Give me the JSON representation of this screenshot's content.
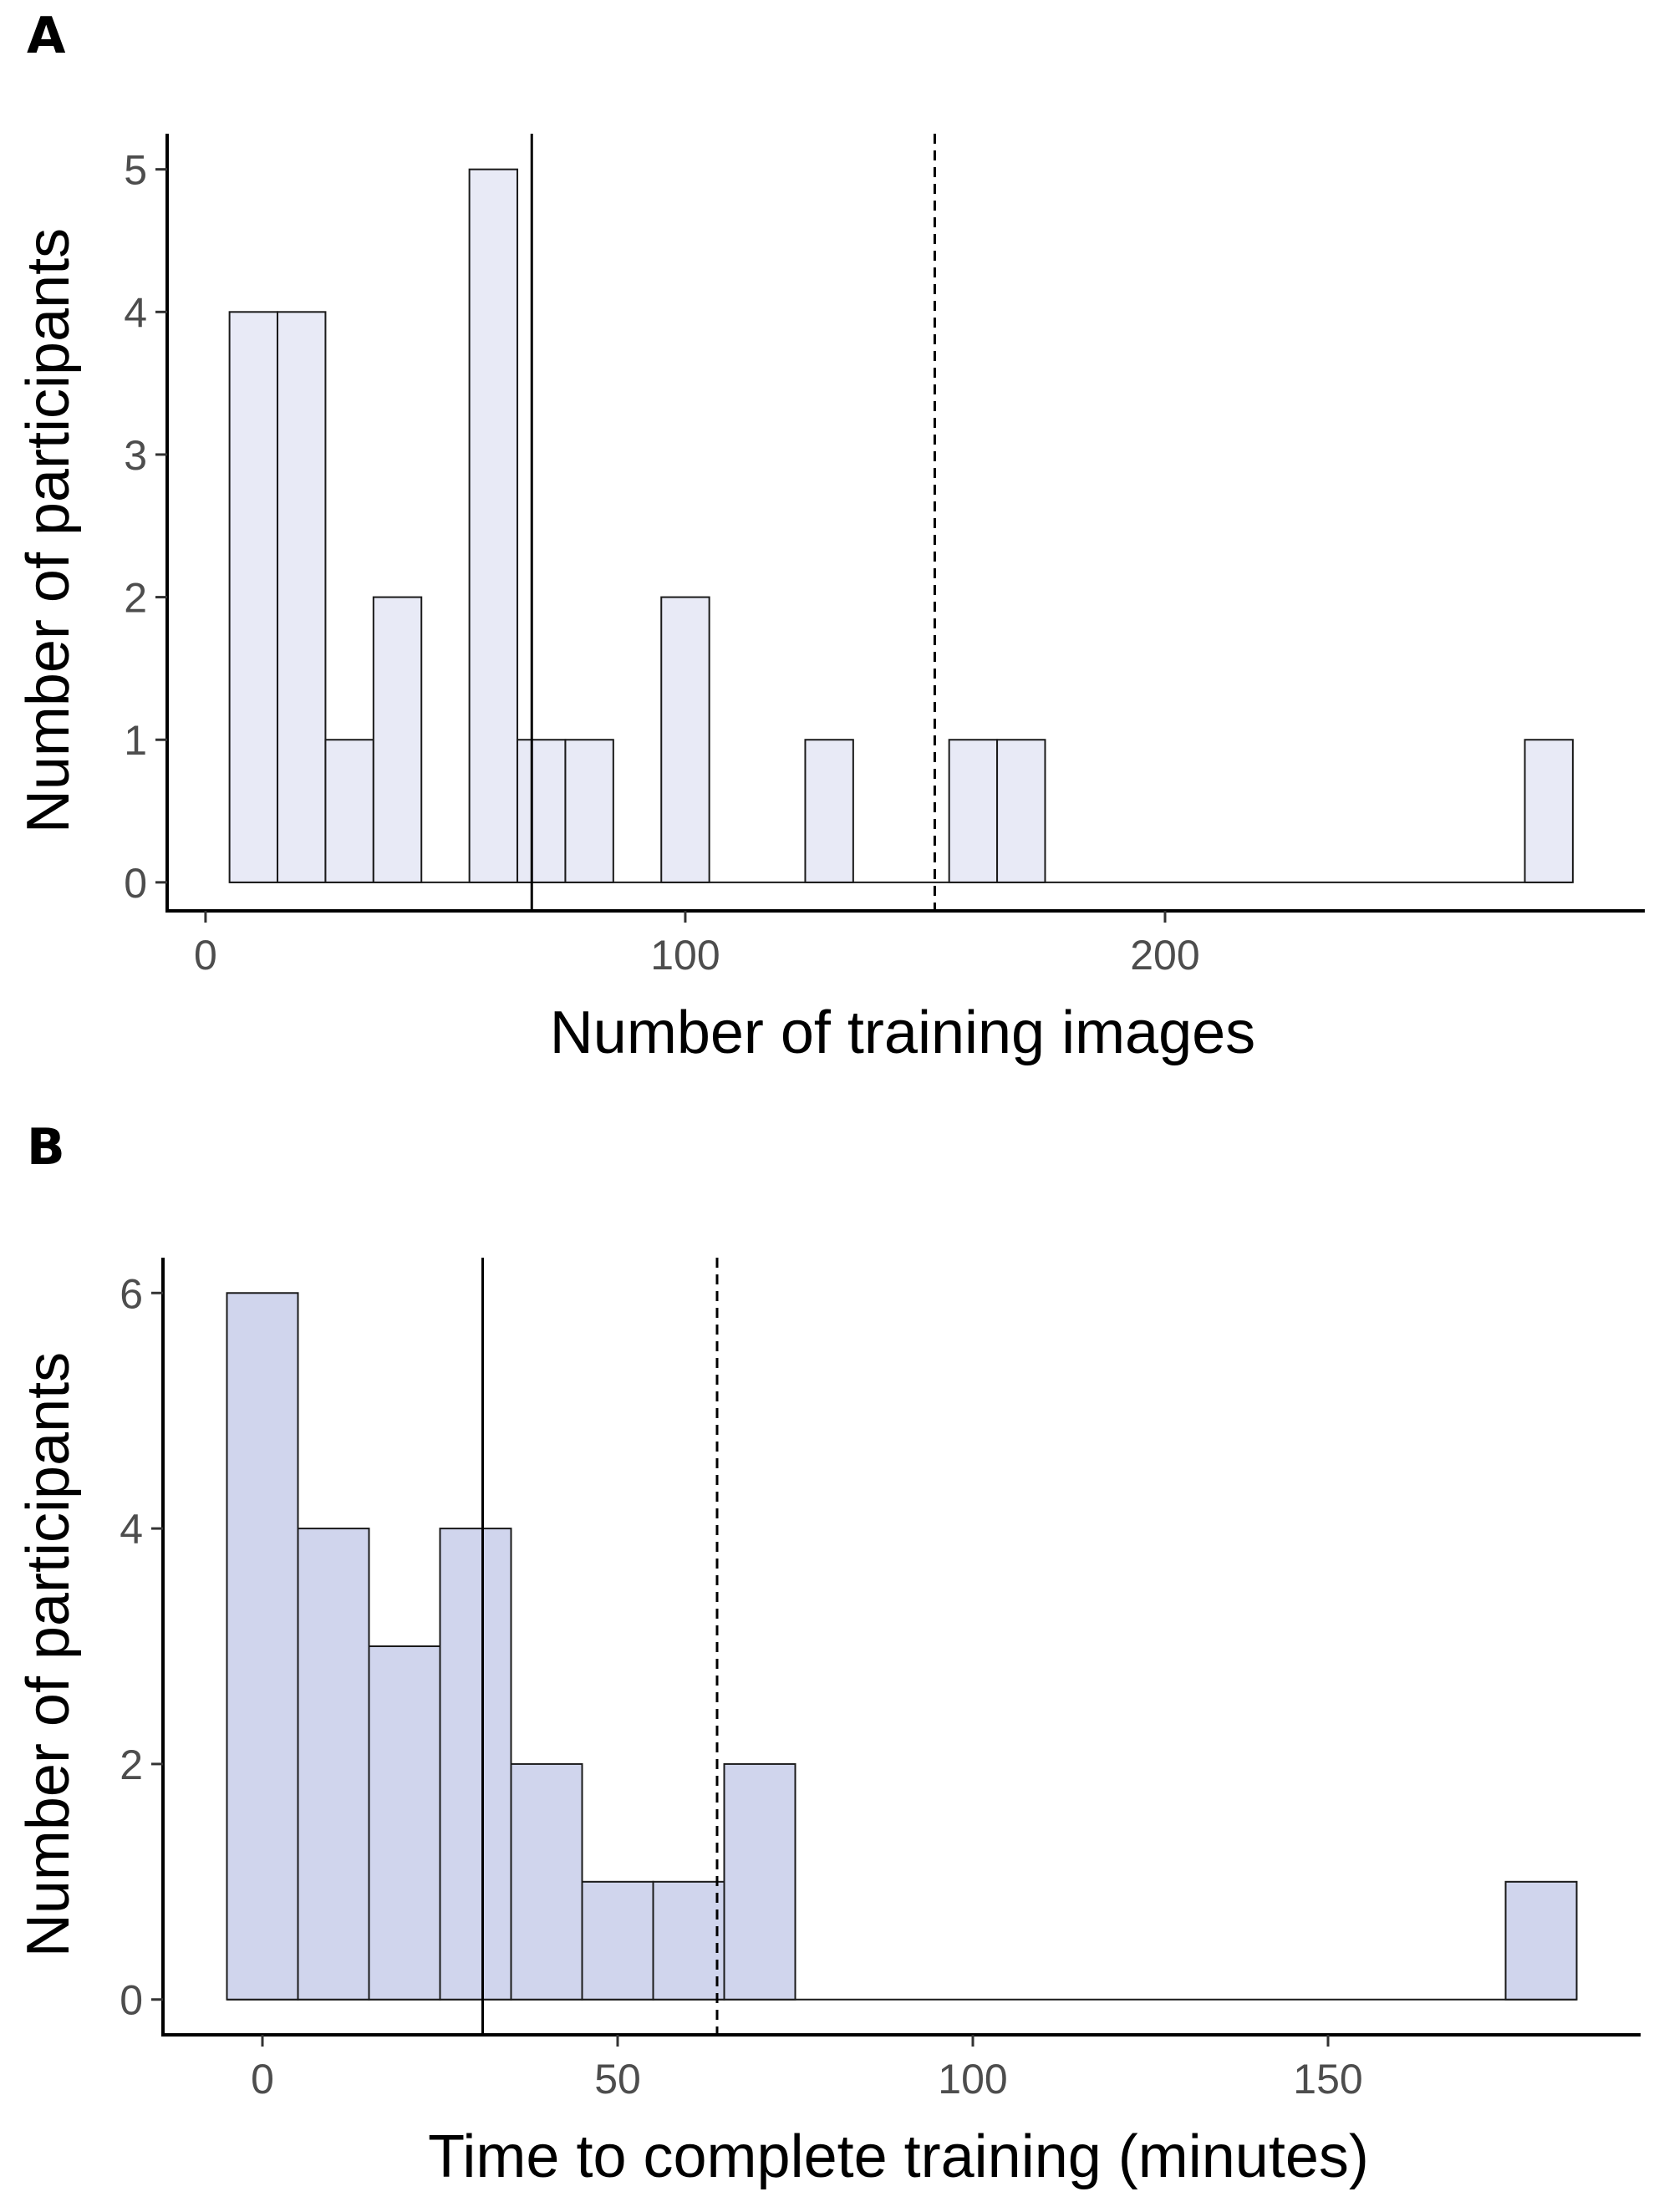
{
  "panels": [
    {
      "letter": "A"
    },
    {
      "letter": "B"
    }
  ],
  "chart_data": [
    {
      "type": "bar",
      "subtype": "histogram",
      "panel": "A",
      "xlabel": "Number of training images",
      "ylabel": "Number of participants",
      "bin_width": 10,
      "x": [
        10,
        20,
        30,
        40,
        60,
        70,
        80,
        100,
        130,
        160,
        170,
        280
      ],
      "values": [
        4,
        4,
        1,
        2,
        5,
        1,
        1,
        2,
        1,
        1,
        1,
        1
      ],
      "baseline_range": [
        5,
        285
      ],
      "xlim": [
        -8,
        300
      ],
      "ylim": [
        -0.2,
        5.25
      ],
      "x_ticks": [
        0,
        100,
        200
      ],
      "y_ticks": [
        0,
        1,
        2,
        3,
        4,
        5
      ],
      "vlines": [
        {
          "x": 68,
          "style": "solid"
        },
        {
          "x": 152,
          "style": "dashed"
        }
      ],
      "fill_color": "#e8eaf6",
      "grid": false
    },
    {
      "type": "bar",
      "subtype": "histogram",
      "panel": "B",
      "xlabel": "Time to complete training (minutes)",
      "ylabel": "Number of participants",
      "bin_width": 10,
      "x": [
        0,
        10,
        20,
        30,
        40,
        50,
        60,
        70,
        180
      ],
      "values": [
        6,
        4,
        3,
        4,
        2,
        1,
        1,
        2,
        1
      ],
      "baseline_range": [
        -5,
        185
      ],
      "xlim": [
        -14,
        194
      ],
      "ylim": [
        -0.3,
        6.3
      ],
      "x_ticks": [
        0,
        50,
        100,
        150
      ],
      "y_ticks": [
        0,
        2,
        4,
        6
      ],
      "vlines": [
        {
          "x": 31,
          "style": "solid"
        },
        {
          "x": 64,
          "style": "dashed"
        }
      ],
      "fill_color": "#d0d5ed",
      "grid": false
    }
  ]
}
